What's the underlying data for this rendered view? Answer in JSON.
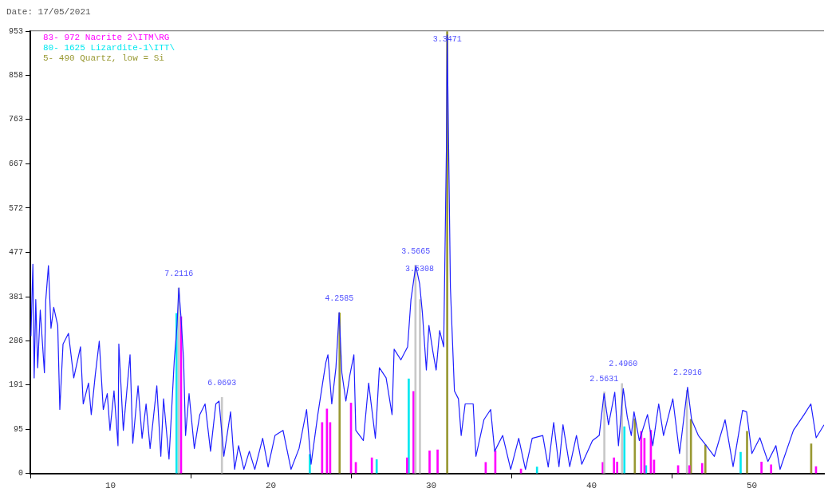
{
  "chart_data": {
    "type": "line",
    "title": "Date: 17/05/2021",
    "xlim": [
      5,
      54.5
    ],
    "xticks": [
      10,
      20,
      30,
      40,
      50
    ],
    "ylim": [
      0,
      953
    ],
    "yticks": [
      0,
      95,
      191,
      286,
      381,
      477,
      572,
      667,
      763,
      858,
      953
    ],
    "legend": "top left",
    "series": [
      {
        "color": "#1f1fff",
        "x": [
          5.04,
          5.16,
          5.24,
          5.34,
          5.46,
          5.62,
          5.88,
          5.96,
          6.13,
          6.29,
          6.46,
          6.71,
          6.84,
          7.04,
          7.38,
          7.71,
          8.13,
          8.3,
          8.63,
          8.8,
          9.05,
          9.3,
          9.55,
          9.8,
          9.97,
          10.22,
          10.47,
          10.52,
          10.8,
          11.22,
          11.39,
          11.72,
          11.97,
          12.22,
          12.47,
          12.89,
          13.14,
          13.31,
          13.65,
          13.98,
          14.15,
          14.26,
          14.4,
          14.56,
          14.68,
          14.9,
          15.23,
          15.57,
          15.9,
          16.24,
          16.57,
          16.77,
          17.07,
          17.49,
          17.74,
          17.99,
          18.32,
          18.66,
          19.0,
          19.49,
          19.83,
          20.26,
          20.76,
          21.26,
          21.76,
          22.23,
          22.51,
          22.93,
          23.23,
          23.43,
          23.56,
          23.8,
          24.06,
          24.26,
          24.43,
          24.68,
          24.93,
          25.18,
          25.3,
          25.77,
          26.1,
          26.52,
          26.77,
          27.19,
          27.56,
          27.69,
          28.11,
          28.53,
          28.74,
          29.04,
          29.28,
          29.45,
          29.7,
          29.86,
          30.11,
          30.31,
          30.53,
          30.78,
          30.95,
          31.0,
          31.2,
          31.45,
          31.7,
          31.87,
          32.12,
          32.62,
          32.79,
          33.29,
          33.71,
          33.96,
          34.46,
          34.96,
          35.46,
          35.88,
          36.3,
          36.96,
          37.3,
          37.64,
          37.97,
          38.22,
          38.64,
          39.06,
          39.39,
          40.06,
          40.48,
          40.78,
          41.06,
          41.45,
          41.68,
          41.98,
          42.23,
          42.48,
          42.65,
          42.98,
          43.49,
          43.82,
          44.19,
          44.49,
          45.07,
          45.49,
          45.99,
          46.24,
          46.66,
          47.16,
          47.66,
          48.33,
          48.83,
          49.42,
          49.67,
          50.0,
          50.5,
          51.0,
          51.5,
          51.76,
          52.59,
          53.26,
          53.68,
          54.01,
          54.5
        ],
        "values": [
          296,
          451,
          206,
          375,
          228,
          352,
          217,
          372,
          448,
          313,
          358,
          319,
          138,
          279,
          302,
          206,
          273,
          150,
          195,
          127,
          212,
          285,
          138,
          172,
          93,
          178,
          60,
          279,
          93,
          256,
          65,
          189,
          76,
          150,
          54,
          189,
          37,
          161,
          31,
          245,
          319,
          400,
          335,
          245,
          82,
          172,
          54,
          127,
          150,
          48,
          150,
          156,
          37,
          133,
          9,
          60,
          9,
          48,
          9,
          76,
          14,
          82,
          93,
          9,
          54,
          138,
          20,
          127,
          195,
          239,
          256,
          150,
          228,
          347,
          217,
          156,
          212,
          256,
          93,
          71,
          195,
          76,
          228,
          206,
          127,
          268,
          245,
          273,
          375,
          448,
          409,
          347,
          223,
          319,
          262,
          223,
          308,
          273,
          700,
          945,
          400,
          178,
          161,
          82,
          150,
          150,
          37,
          116,
          138,
          48,
          82,
          9,
          76,
          9,
          76,
          82,
          14,
          110,
          15,
          105,
          15,
          82,
          20,
          71,
          82,
          172,
          105,
          175,
          60,
          183,
          122,
          82,
          133,
          71,
          127,
          60,
          150,
          82,
          161,
          43,
          186,
          116,
          82,
          60,
          37,
          116,
          15,
          136,
          133,
          43,
          77,
          26,
          60,
          9,
          93,
          127,
          150,
          77,
          105
        ]
      },
      {
        "type": "bar",
        "color": "#c8c8c8",
        "x": [
          14.26,
          16.95,
          29.02,
          29.3,
          40.8,
          41.9,
          45.95
        ],
        "values": [
          400,
          164,
          449,
          375,
          176,
          194,
          179
        ]
      },
      {
        "type": "bar",
        "name": "83- 972 Nacrite 2\\ITM\\RG",
        "color": "#ff00ff",
        "x": [
          14.4,
          23.2,
          23.5,
          23.7,
          25.0,
          25.3,
          26.3,
          28.5,
          28.9,
          29.9,
          30.4,
          33.4,
          34.0,
          35.6,
          40.7,
          41.4,
          41.6,
          43.1,
          43.3,
          43.7,
          43.9,
          45.4,
          46.1,
          46.9,
          50.6,
          51.2,
          54.0
        ],
        "values": [
          338,
          110,
          139,
          110,
          152,
          24,
          34,
          34,
          177,
          49,
          51,
          24,
          49,
          10,
          24,
          34,
          25,
          91,
          76,
          93,
          29,
          17,
          17,
          22,
          25,
          19,
          15
        ]
      },
      {
        "type": "bar",
        "name": "80- 1625 Lizardite-1\\ITT\\",
        "color": "#00e8f0",
        "x": [
          14.12,
          22.43,
          26.6,
          28.6,
          36.6,
          42.05,
          43.4,
          49.3
        ],
        "values": [
          345,
          41,
          30,
          204,
          14,
          101,
          17,
          46
        ]
      },
      {
        "type": "bar",
        "name": "5- 490 Quartz, low = Si",
        "color": "#999933",
        "x": [
          24.29,
          31.0,
          42.7,
          46.2,
          47.1,
          49.7,
          53.7
        ],
        "values": [
          346,
          953,
          118,
          117,
          62,
          91,
          64
        ]
      }
    ],
    "annotations": [
      {
        "text": "7.2116",
        "x": 14.26,
        "y": 400
      },
      {
        "text": "6.0693",
        "x": 16.95,
        "y": 164
      },
      {
        "text": "4.2585",
        "x": 24.26,
        "y": 347
      },
      {
        "text": "3.5665",
        "x": 29.04,
        "y": 448
      },
      {
        "text": "3.5308",
        "x": 29.28,
        "y": 409
      },
      {
        "text": "3.3471",
        "x": 31.0,
        "y": 945
      },
      {
        "text": "2.5631",
        "x": 40.78,
        "y": 172
      },
      {
        "text": "2.4960",
        "x": 41.98,
        "y": 183
      },
      {
        "text": "2.2916",
        "x": 45.99,
        "y": 186
      }
    ]
  }
}
